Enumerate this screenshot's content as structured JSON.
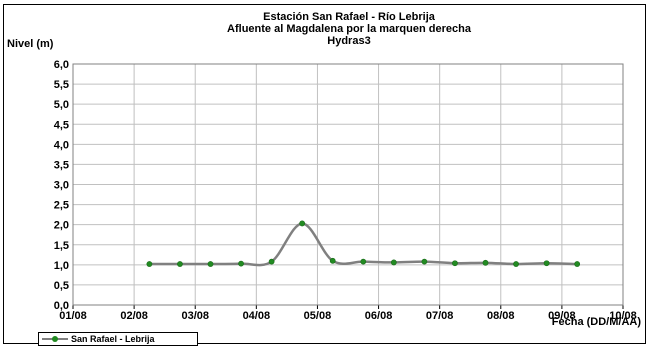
{
  "chart_data": {
    "type": "line",
    "title_lines": [
      "Estación San Rafael - Río Lebrija",
      "Afluente al Magdalena por la marquen derecha",
      "Hydras3"
    ],
    "ylabel": "Nivel (m)",
    "xlabel": "Fecha (DD/M/AA)",
    "ylim": [
      0,
      6
    ],
    "yticks": [
      "6,0",
      "5,5",
      "5,0",
      "4,5",
      "4,0",
      "3,5",
      "3,0",
      "2,5",
      "2,0",
      "1,5",
      "1,0",
      "0,5",
      "0,0"
    ],
    "xlim": [
      0,
      9
    ],
    "xticks": [
      "01/08",
      "02/08",
      "03/08",
      "04/08",
      "05/08",
      "06/08",
      "07/08",
      "08/08",
      "09/08",
      "10/08"
    ],
    "grid": true,
    "legend_position": "bottom-left",
    "series": [
      {
        "name": "San Rafael - Lebrija",
        "color": "#808080",
        "marker_color": "#228b22",
        "x": [
          1.25,
          1.75,
          2.25,
          2.75,
          3.25,
          3.75,
          4.25,
          4.75,
          5.25,
          5.75,
          6.25,
          6.75,
          7.25,
          7.75,
          8.25
        ],
        "y": [
          1.02,
          1.02,
          1.02,
          1.03,
          1.08,
          2.03,
          1.1,
          1.08,
          1.06,
          1.08,
          1.04,
          1.05,
          1.02,
          1.04,
          1.02
        ]
      }
    ]
  }
}
